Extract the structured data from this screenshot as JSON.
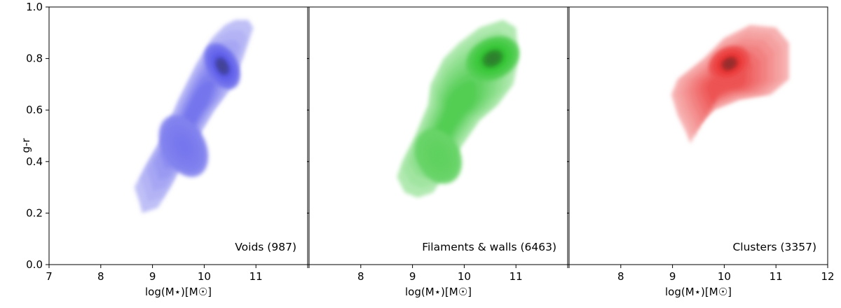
{
  "chart_data": {
    "type": "density_contour",
    "shared_y": true,
    "ylabel": "g-r",
    "ylim": [
      0.0,
      1.0
    ],
    "yticks": [
      0.0,
      0.2,
      0.4,
      0.6,
      0.8,
      1.0
    ],
    "ytick_labels": [
      "0.0",
      "0.2",
      "0.4",
      "0.6",
      "0.8",
      "1.0"
    ],
    "panels": [
      {
        "label": "Voids (987)",
        "environment": "Voids",
        "count": 987,
        "color": "#4a4ae8",
        "xlabel": "log(M⋆)[M☉]",
        "xlim": [
          7,
          12
        ],
        "xticks": [
          7,
          8,
          9,
          10,
          11,
          12
        ],
        "xtick_labels": [
          "7",
          "8",
          "9",
          "10",
          "11"
        ],
        "outline": [
          [
            8.8,
            0.2
          ],
          [
            9.1,
            0.22
          ],
          [
            9.35,
            0.3
          ],
          [
            9.6,
            0.4
          ],
          [
            9.9,
            0.5
          ],
          [
            10.2,
            0.6
          ],
          [
            10.5,
            0.68
          ],
          [
            10.75,
            0.8
          ],
          [
            10.95,
            0.92
          ],
          [
            10.85,
            0.95
          ],
          [
            10.6,
            0.95
          ],
          [
            10.4,
            0.93
          ],
          [
            10.15,
            0.88
          ],
          [
            9.85,
            0.78
          ],
          [
            9.5,
            0.64
          ],
          [
            9.2,
            0.5
          ],
          [
            8.85,
            0.38
          ],
          [
            8.65,
            0.3
          ],
          [
            8.75,
            0.24
          ]
        ],
        "peaks": [
          {
            "x": 10.35,
            "y": 0.77,
            "rx": 0.25,
            "ry": 0.06,
            "level": 1.0
          },
          {
            "x": 9.6,
            "y": 0.46,
            "rx": 0.35,
            "ry": 0.08,
            "level": 0.55
          }
        ]
      },
      {
        "label": "Filaments & walls (6463)",
        "environment": "Filaments & walls",
        "count": 6463,
        "color": "#1fbf1f",
        "xlabel": "log(M⋆)[M☉]",
        "xlim": [
          7,
          12
        ],
        "xticks": [
          7,
          8,
          9,
          10,
          11,
          12
        ],
        "xtick_labels": [
          "",
          "8",
          "9",
          "10",
          "11"
        ],
        "outline": [
          [
            9.1,
            0.26
          ],
          [
            9.4,
            0.28
          ],
          [
            9.65,
            0.36
          ],
          [
            9.95,
            0.46
          ],
          [
            10.3,
            0.56
          ],
          [
            10.65,
            0.62
          ],
          [
            10.95,
            0.7
          ],
          [
            11.05,
            0.8
          ],
          [
            11.0,
            0.92
          ],
          [
            10.75,
            0.95
          ],
          [
            10.3,
            0.92
          ],
          [
            9.9,
            0.86
          ],
          [
            9.6,
            0.8
          ],
          [
            9.35,
            0.7
          ],
          [
            9.3,
            0.62
          ],
          [
            9.05,
            0.5
          ],
          [
            8.8,
            0.4
          ],
          [
            8.7,
            0.34
          ],
          [
            8.85,
            0.28
          ]
        ],
        "peaks": [
          {
            "x": 10.55,
            "y": 0.8,
            "rx": 0.45,
            "ry": 0.05,
            "level": 1.0
          },
          {
            "x": 9.5,
            "y": 0.42,
            "rx": 0.35,
            "ry": 0.07,
            "level": 0.45
          }
        ]
      },
      {
        "label": "Clusters (3357)",
        "environment": "Clusters",
        "count": 3357,
        "color": "#e81e1e",
        "xlabel": "log(M⋆)[M☉]",
        "xlim": [
          7,
          12
        ],
        "xticks": [
          7,
          8,
          9,
          10,
          11,
          12
        ],
        "xtick_labels": [
          "",
          "8",
          "9",
          "10",
          "11",
          "12"
        ],
        "outline": [
          [
            9.35,
            0.47
          ],
          [
            9.5,
            0.54
          ],
          [
            9.8,
            0.6
          ],
          [
            10.3,
            0.64
          ],
          [
            10.9,
            0.66
          ],
          [
            11.25,
            0.72
          ],
          [
            11.25,
            0.86
          ],
          [
            11.0,
            0.92
          ],
          [
            10.5,
            0.93
          ],
          [
            10.0,
            0.88
          ],
          [
            9.6,
            0.8
          ],
          [
            9.1,
            0.72
          ],
          [
            8.98,
            0.66
          ],
          [
            9.1,
            0.58
          ],
          [
            9.25,
            0.52
          ]
        ],
        "peaks": [
          {
            "x": 10.1,
            "y": 0.78,
            "rx": 0.35,
            "ry": 0.04,
            "level": 1.0
          }
        ]
      }
    ]
  }
}
